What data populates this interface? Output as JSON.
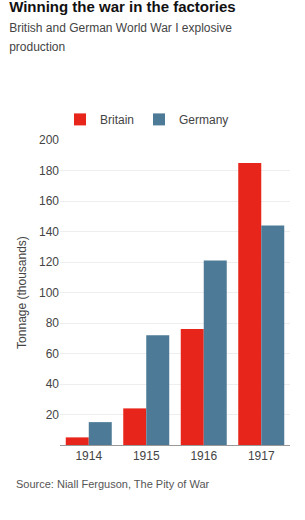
{
  "chart_data": {
    "type": "bar",
    "title": "Winning the war in the factories",
    "subtitle": "British and German World War I explosive\nproduction",
    "ylabel": "Tonnage (thousands)",
    "categories": [
      "1914",
      "1915",
      "1916",
      "1917"
    ],
    "series": [
      {
        "name": "Britain",
        "color": "#e8251a",
        "values": [
          5,
          24,
          76,
          185
        ]
      },
      {
        "name": "Germany",
        "color": "#4d7a96",
        "values": [
          15,
          72,
          121,
          144
        ]
      }
    ],
    "ylim": [
      0,
      200
    ],
    "yticks": [
      20,
      40,
      60,
      80,
      100,
      120,
      140,
      160,
      180,
      200
    ],
    "grid": true,
    "legend": "top",
    "source": "Source: Niall Ferguson, The Pity of War"
  }
}
